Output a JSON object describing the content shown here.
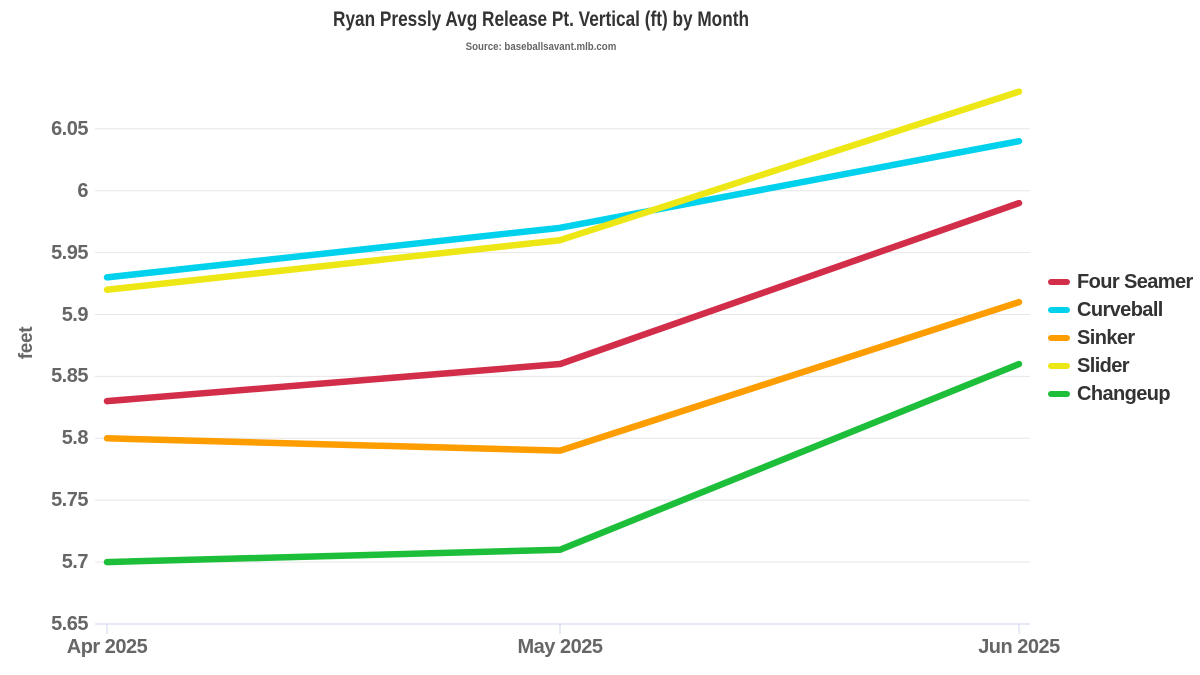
{
  "header": {
    "title": "Ryan Pressly Avg Release Pt. Vertical (ft) by Month",
    "subtitle": "Source: baseballsavant.mlb.com"
  },
  "chart_data": {
    "type": "line",
    "title": "Ryan Pressly Avg Release Pt. Vertical (ft) by Month",
    "subtitle": "Source: baseballsavant.mlb.com",
    "xlabel": "",
    "ylabel": "feet",
    "categories": [
      "Apr 2025",
      "May 2025",
      "Jun 2025"
    ],
    "series": [
      {
        "name": "Four Seamer",
        "color": "#D22D49",
        "values": [
          5.83,
          5.86,
          5.99
        ]
      },
      {
        "name": "Curveball",
        "color": "#00D1ED",
        "values": [
          5.93,
          5.97,
          6.04
        ]
      },
      {
        "name": "Sinker",
        "color": "#FE9D00",
        "values": [
          5.8,
          5.79,
          5.91
        ]
      },
      {
        "name": "Slider",
        "color": "#EEE716",
        "values": [
          5.92,
          5.96,
          6.08
        ]
      },
      {
        "name": "Changeup",
        "color": "#1DBE3A",
        "values": [
          5.7,
          5.71,
          5.86
        ]
      }
    ],
    "yticks": {
      "values": [
        5.65,
        5.7,
        5.75,
        5.8,
        5.85,
        5.9,
        5.95,
        6,
        6.05
      ],
      "labels": [
        "5.65",
        "5.7",
        "5.75",
        "5.8",
        "5.85",
        "5.9",
        "5.95",
        "6",
        "6.05"
      ]
    },
    "ylim": [
      5.65,
      6.09
    ],
    "grid": true,
    "legend_position": "right",
    "colors": {
      "background": "#ffffff",
      "grid": "#e6e6e6",
      "axis": "#ccd6eb",
      "title": "#333333",
      "subtitle": "#666666",
      "tick_label": "#666666",
      "legend_text": "#333333"
    }
  }
}
